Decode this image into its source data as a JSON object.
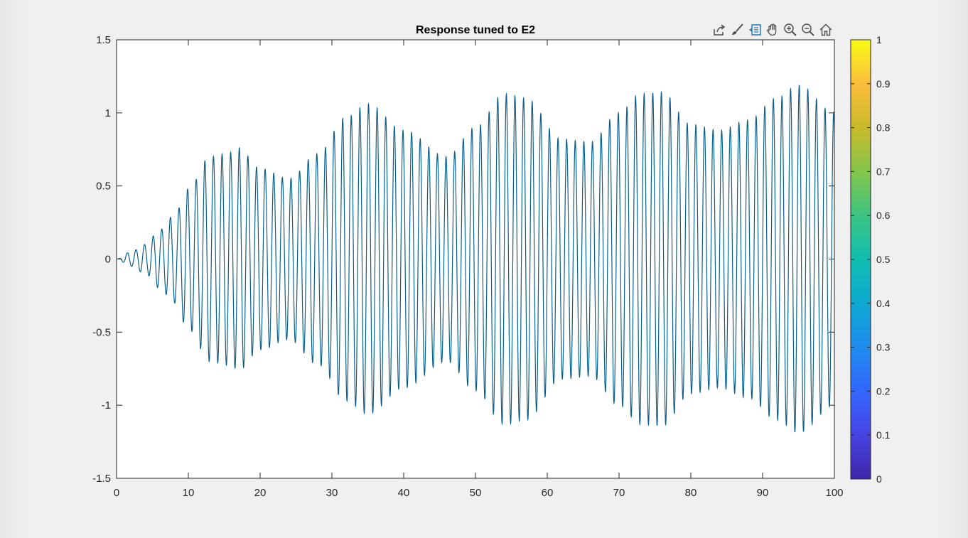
{
  "toolbar": {
    "buttons": [
      {
        "name": "export-icon"
      },
      {
        "name": "brush-icon"
      },
      {
        "name": "datatip-icon"
      },
      {
        "name": "pan-icon"
      },
      {
        "name": "zoom-in-icon"
      },
      {
        "name": "zoom-out-icon"
      },
      {
        "name": "home-icon"
      }
    ],
    "active_color": "#2a7ab8",
    "icon_color": "#505050"
  },
  "chart_data": {
    "type": "line",
    "title": "Response tuned to E2",
    "xlabel": "",
    "ylabel": "",
    "xlim": [
      0,
      100
    ],
    "ylim": [
      -1.5,
      1.5
    ],
    "x_ticks": [
      "0",
      "10",
      "20",
      "30",
      "40",
      "50",
      "60",
      "70",
      "80",
      "90",
      "100"
    ],
    "y_ticks": [
      "1.5",
      "1",
      "0.5",
      "0",
      "-0.5",
      "-1",
      "-1.5"
    ],
    "line_color": "#0a5f8c",
    "series": [
      {
        "name": "",
        "oscillation_period": 1.2,
        "envelope": {
          "t": [
            0,
            2,
            4,
            6,
            8,
            10,
            13,
            16,
            17,
            20,
            24,
            28,
            32,
            35,
            40,
            46,
            50,
            54,
            57,
            62,
            66,
            70,
            73,
            76,
            80,
            84,
            88,
            92,
            95,
            100
          ],
          "amp": [
            0,
            0.05,
            0.1,
            0.2,
            0.3,
            0.48,
            0.7,
            0.73,
            0.76,
            0.62,
            0.55,
            0.72,
            0.97,
            1.06,
            0.88,
            0.7,
            0.9,
            1.13,
            1.1,
            0.82,
            0.8,
            1.0,
            1.13,
            1.14,
            0.92,
            0.88,
            0.95,
            1.1,
            1.19,
            1.0
          ]
        }
      }
    ],
    "colorbar": {
      "labels": [
        "1",
        "0.9",
        "0.8",
        "0.7",
        "0.6",
        "0.5",
        "0.4",
        "0.3",
        "0.2",
        "0.1",
        "0"
      ],
      "colormap": [
        "#3e26a8",
        "#4743e2",
        "#3366fe",
        "#1e8ced",
        "#0ea9d2",
        "#10bdb1",
        "#3cc583",
        "#85c64b",
        "#c8ba2c",
        "#fbbd3c",
        "#f9fb15"
      ]
    }
  }
}
